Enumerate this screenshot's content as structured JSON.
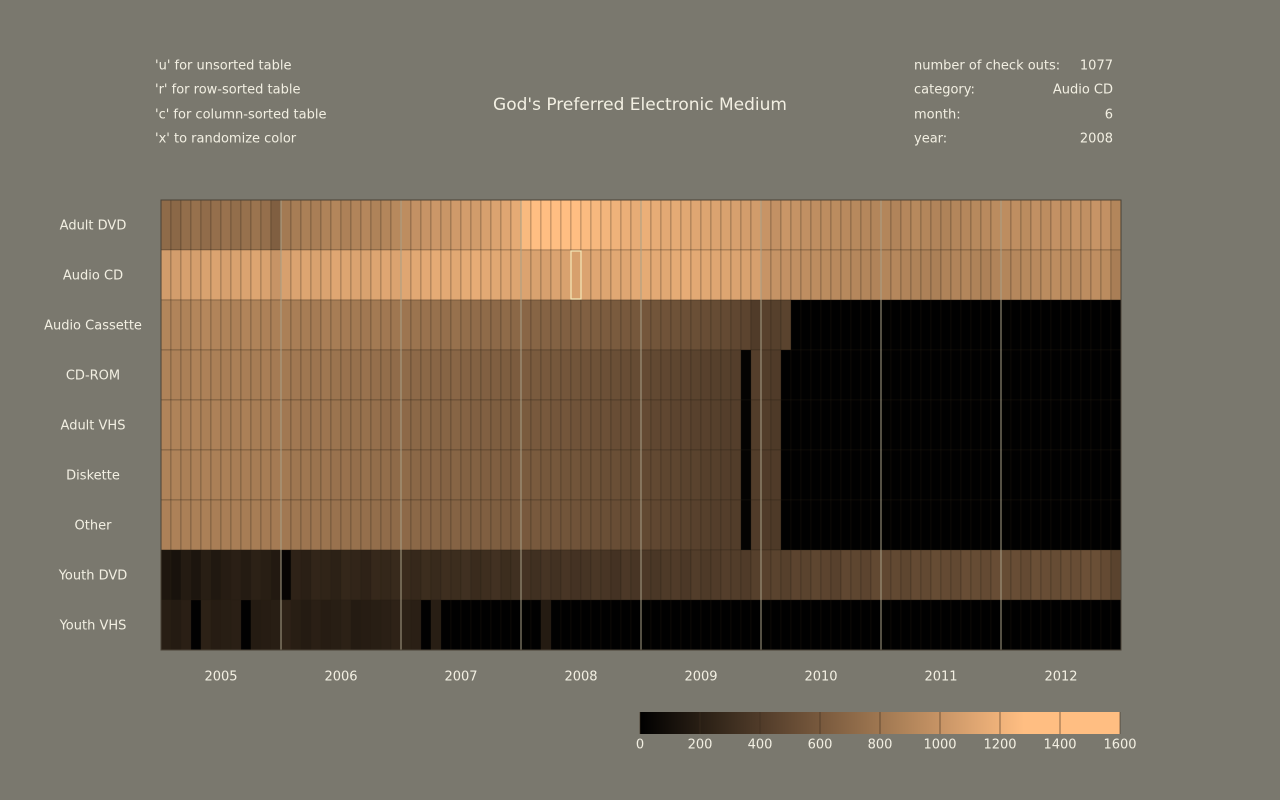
{
  "instructions": [
    "'u' for unsorted table",
    "'r' for row-sorted table",
    "'c' for column-sorted table",
    "'x' to randomize color"
  ],
  "info": {
    "checkouts_label": "number of check outs:",
    "checkouts": 1077,
    "category_label": "category:",
    "category": "Audio CD",
    "month_label": "month:",
    "month": 6,
    "year_label": "year:",
    "year": 2008
  },
  "chart_data": {
    "type": "heatmap",
    "title": "God's Preferred Electronic Medium",
    "years": [
      2005,
      2006,
      2007,
      2008,
      2009,
      2010,
      2011,
      2012
    ],
    "clim": [
      0,
      1600
    ],
    "cticks": [
      0,
      200,
      400,
      600,
      800,
      1000,
      1200,
      1400,
      1600
    ],
    "colorscale": [
      [
        0,
        "#000000"
      ],
      [
        0.8,
        "#ffbe82"
      ],
      [
        1,
        "#ffbe82"
      ]
    ],
    "series": [
      {
        "name": "Adult DVD",
        "values": [
          720,
          700,
          740,
          760,
          730,
          750,
          770,
          740,
          760,
          780,
          750,
          640,
          820,
          840,
          860,
          850,
          880,
          900,
          870,
          890,
          910,
          880,
          900,
          920,
          950,
          980,
          1000,
          1020,
          1010,
          1040,
          1060,
          1050,
          1080,
          1100,
          1120,
          1150,
          1250,
          1280,
          1300,
          1320,
          1300,
          1280,
          1260,
          1240,
          1220,
          1200,
          1180,
          1160,
          1180,
          1160,
          1140,
          1150,
          1130,
          1120,
          1110,
          1100,
          1090,
          1080,
          1060,
          1050,
          1000,
          980,
          1010,
          990,
          970,
          960,
          950,
          940,
          930,
          920,
          910,
          900,
          900,
          890,
          910,
          920,
          900,
          890,
          880,
          900,
          910,
          920,
          930,
          940,
          950,
          960,
          940,
          970,
          950,
          980,
          960,
          990,
          970,
          1000,
          980,
          900
        ]
      },
      {
        "name": "Audio CD",
        "values": [
          1050,
          1060,
          1080,
          1070,
          1090,
          1100,
          1080,
          1090,
          1100,
          1110,
          1090,
          1000,
          1080,
          1100,
          1110,
          1090,
          1100,
          1120,
          1110,
          1100,
          1090,
          1110,
          1120,
          1100,
          1120,
          1130,
          1140,
          1150,
          1140,
          1130,
          1150,
          1160,
          1140,
          1130,
          1120,
          1110,
          1100,
          1090,
          1080,
          1100,
          1090,
          1077,
          1100,
          1120,
          1110,
          1130,
          1120,
          1140,
          1150,
          1140,
          1130,
          1150,
          1160,
          1140,
          1130,
          1120,
          1110,
          1100,
          1090,
          1080,
          1000,
          990,
          980,
          970,
          960,
          950,
          940,
          930,
          920,
          910,
          900,
          890,
          900,
          910,
          890,
          880,
          870,
          860,
          880,
          890,
          900,
          880,
          870,
          890,
          900,
          910,
          920,
          930,
          940,
          950,
          940,
          930,
          950,
          960,
          940,
          850
        ]
      },
      {
        "name": "Audio Cassette",
        "values": [
          900,
          890,
          880,
          900,
          910,
          890,
          880,
          870,
          890,
          880,
          870,
          860,
          860,
          850,
          840,
          830,
          850,
          840,
          830,
          820,
          810,
          820,
          810,
          800,
          790,
          780,
          770,
          760,
          750,
          760,
          740,
          730,
          720,
          710,
          720,
          700,
          690,
          680,
          670,
          660,
          650,
          640,
          650,
          630,
          620,
          610,
          600,
          590,
          580,
          570,
          560,
          550,
          540,
          530,
          520,
          510,
          500,
          480,
          460,
          400,
          440,
          430,
          450,
          5,
          5,
          5,
          5,
          5,
          5,
          5,
          5,
          5,
          5,
          5,
          5,
          5,
          5,
          5,
          5,
          5,
          5,
          5,
          5,
          5,
          5,
          5,
          5,
          5,
          5,
          5,
          5,
          5,
          5,
          5,
          5,
          5
        ]
      },
      {
        "name": "CD-ROM",
        "values": [
          880,
          870,
          860,
          880,
          870,
          860,
          850,
          860,
          850,
          840,
          850,
          830,
          820,
          810,
          800,
          790,
          800,
          780,
          770,
          760,
          770,
          750,
          740,
          730,
          720,
          710,
          700,
          690,
          680,
          690,
          670,
          660,
          650,
          640,
          630,
          620,
          620,
          610,
          600,
          590,
          580,
          570,
          560,
          550,
          540,
          530,
          520,
          510,
          500,
          490,
          480,
          470,
          460,
          450,
          440,
          430,
          430,
          420,
          20,
          420,
          410,
          400,
          5,
          5,
          5,
          5,
          5,
          5,
          5,
          5,
          5,
          5,
          5,
          5,
          5,
          5,
          5,
          5,
          5,
          5,
          5,
          5,
          5,
          5,
          5,
          5,
          5,
          5,
          5,
          5,
          5,
          5,
          5,
          5,
          5,
          5
        ]
      },
      {
        "name": "Adult VHS",
        "values": [
          890,
          880,
          870,
          880,
          860,
          870,
          850,
          850,
          860,
          840,
          840,
          830,
          810,
          810,
          790,
          790,
          790,
          780,
          760,
          760,
          760,
          750,
          730,
          730,
          710,
          700,
          700,
          680,
          680,
          680,
          670,
          650,
          650,
          630,
          630,
          610,
          610,
          600,
          600,
          580,
          580,
          560,
          560,
          540,
          540,
          520,
          520,
          500,
          500,
          480,
          480,
          460,
          460,
          440,
          440,
          430,
          420,
          420,
          20,
          410,
          410,
          390,
          5,
          5,
          5,
          5,
          5,
          5,
          5,
          5,
          5,
          5,
          5,
          5,
          5,
          5,
          5,
          5,
          5,
          5,
          5,
          5,
          5,
          5,
          5,
          5,
          5,
          5,
          5,
          5,
          5,
          5,
          5,
          5,
          5,
          5
        ]
      },
      {
        "name": "Diskette",
        "values": [
          880,
          880,
          860,
          870,
          870,
          860,
          860,
          850,
          850,
          840,
          840,
          830,
          820,
          800,
          800,
          780,
          790,
          770,
          770,
          750,
          760,
          740,
          740,
          720,
          720,
          700,
          690,
          690,
          670,
          680,
          660,
          660,
          640,
          640,
          620,
          620,
          610,
          610,
          590,
          590,
          570,
          570,
          550,
          550,
          530,
          530,
          510,
          510,
          490,
          490,
          470,
          470,
          450,
          450,
          430,
          430,
          420,
          410,
          20,
          410,
          400,
          400,
          5,
          5,
          5,
          5,
          5,
          5,
          5,
          5,
          5,
          5,
          5,
          5,
          5,
          5,
          5,
          5,
          5,
          5,
          5,
          5,
          5,
          5,
          5,
          5,
          5,
          5,
          5,
          5,
          5,
          5,
          5,
          5,
          5,
          5
        ]
      },
      {
        "name": "Other",
        "values": [
          870,
          870,
          860,
          860,
          860,
          850,
          850,
          850,
          840,
          840,
          830,
          830,
          810,
          800,
          790,
          790,
          780,
          770,
          760,
          760,
          750,
          740,
          730,
          720,
          710,
          700,
          690,
          680,
          670,
          670,
          660,
          650,
          640,
          630,
          620,
          610,
          600,
          600,
          590,
          580,
          570,
          560,
          550,
          540,
          530,
          520,
          510,
          500,
          490,
          480,
          470,
          460,
          450,
          440,
          430,
          420,
          420,
          410,
          20,
          400,
          400,
          390,
          5,
          5,
          5,
          5,
          5,
          5,
          5,
          5,
          5,
          5,
          5,
          5,
          5,
          5,
          5,
          5,
          5,
          5,
          5,
          5,
          5,
          5,
          5,
          5,
          5,
          5,
          5,
          5,
          5,
          5,
          5,
          5,
          5,
          5
        ]
      },
      {
        "name": "Youth DVD",
        "values": [
          150,
          120,
          180,
          140,
          200,
          160,
          190,
          210,
          180,
          220,
          200,
          170,
          30,
          230,
          210,
          250,
          240,
          220,
          260,
          250,
          230,
          270,
          260,
          280,
          290,
          270,
          300,
          280,
          310,
          300,
          320,
          290,
          310,
          330,
          300,
          320,
          340,
          320,
          350,
          330,
          360,
          340,
          350,
          370,
          360,
          340,
          380,
          360,
          380,
          370,
          390,
          400,
          380,
          410,
          390,
          400,
          420,
          410,
          400,
          430,
          440,
          450,
          430,
          460,
          450,
          470,
          460,
          440,
          480,
          470,
          460,
          490,
          480,
          490,
          470,
          500,
          490,
          510,
          500,
          490,
          520,
          510,
          500,
          520,
          510,
          520,
          500,
          530,
          520,
          510,
          530,
          520,
          540,
          530,
          500,
          450
        ]
      },
      {
        "name": "Youth VHS",
        "values": [
          200,
          180,
          210,
          5,
          220,
          190,
          200,
          210,
          5,
          180,
          190,
          200,
          230,
          200,
          180,
          210,
          190,
          200,
          220,
          180,
          190,
          200,
          210,
          230,
          220,
          210,
          5,
          200,
          5,
          5,
          5,
          5,
          5,
          5,
          5,
          5,
          5,
          5,
          180,
          5,
          5,
          5,
          5,
          5,
          5,
          5,
          5,
          5,
          5,
          5,
          5,
          5,
          5,
          5,
          5,
          5,
          5,
          5,
          5,
          5,
          5,
          5,
          5,
          5,
          5,
          5,
          5,
          5,
          5,
          5,
          5,
          5,
          5,
          5,
          5,
          5,
          5,
          5,
          5,
          5,
          5,
          5,
          5,
          5,
          5,
          5,
          5,
          5,
          5,
          5,
          5,
          5,
          5,
          5,
          5,
          5
        ]
      }
    ]
  }
}
